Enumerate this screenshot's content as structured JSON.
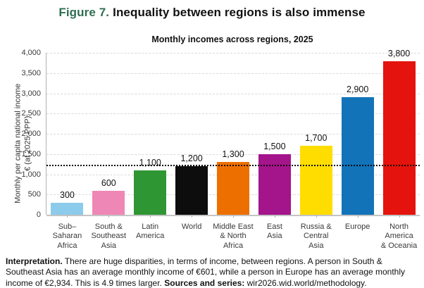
{
  "figure": {
    "label": "Figure 7.",
    "title": "Inequality between regions is also immense",
    "accent_color": "#2e6e52"
  },
  "chart_data": {
    "type": "bar",
    "title": "Monthly incomes across regions, 2025",
    "ylabel_line1": "Monthly per capita national income",
    "ylabel_line2": "€ (at 2025 PPP)",
    "xlabel": "",
    "ylim": [
      0,
      4000
    ],
    "grid": "horizontal dashed, light gray",
    "legend": "none",
    "ytick_values": [
      0,
      500,
      1000,
      1500,
      2000,
      2500,
      3000,
      3500,
      4000
    ],
    "ytick_labels": [
      "0",
      "500",
      "1,000",
      "1,500",
      "2,000",
      "2,500",
      "3,000",
      "3,500",
      "4,000"
    ],
    "categories": [
      "Sub–Saharan Africa",
      "South & Southeast Asia",
      "Latin America",
      "World",
      "Middle East & North Africa",
      "East Asia",
      "Russia & Central Asia",
      "Europe",
      "North America & Oceania"
    ],
    "category_lines": [
      [
        "Sub–",
        "Saharan",
        "Africa"
      ],
      [
        "South &",
        "Southeast",
        "Asia"
      ],
      [
        "Latin",
        "America"
      ],
      [
        "World"
      ],
      [
        "Middle East",
        "& North",
        "Africa"
      ],
      [
        "East",
        "Asia"
      ],
      [
        "Russia &",
        "Central",
        "Asia"
      ],
      [
        "Europe"
      ],
      [
        "North",
        "America",
        "& Oceania"
      ]
    ],
    "values": [
      300,
      600,
      1100,
      1200,
      1300,
      1500,
      1700,
      2900,
      3800
    ],
    "value_labels": [
      "300",
      "600",
      "1,100",
      "1,200",
      "1,300",
      "1,500",
      "1,700",
      "2,900",
      "3,800"
    ],
    "bar_colors": [
      "#8ccbeb",
      "#ef87b6",
      "#2e9633",
      "#0d0d0d",
      "#ed6f00",
      "#a4148a",
      "#ffdd00",
      "#1273b9",
      "#e4130d"
    ],
    "reference_line": {
      "value": 1200,
      "style": "dotted",
      "color": "#000000"
    }
  },
  "caption": {
    "interpretation_label": "Interpretation.",
    "interpretation_text": "There are huge disparities, in terms of income, between regions. A person in South & Southeast Asia has an average monthly income of €601, while a person in Europe has an average monthly income of €2,934. This is 4.9 times larger.",
    "sources_label": "Sources and series:",
    "sources_text": "wir2026.wid.world/methodology."
  }
}
